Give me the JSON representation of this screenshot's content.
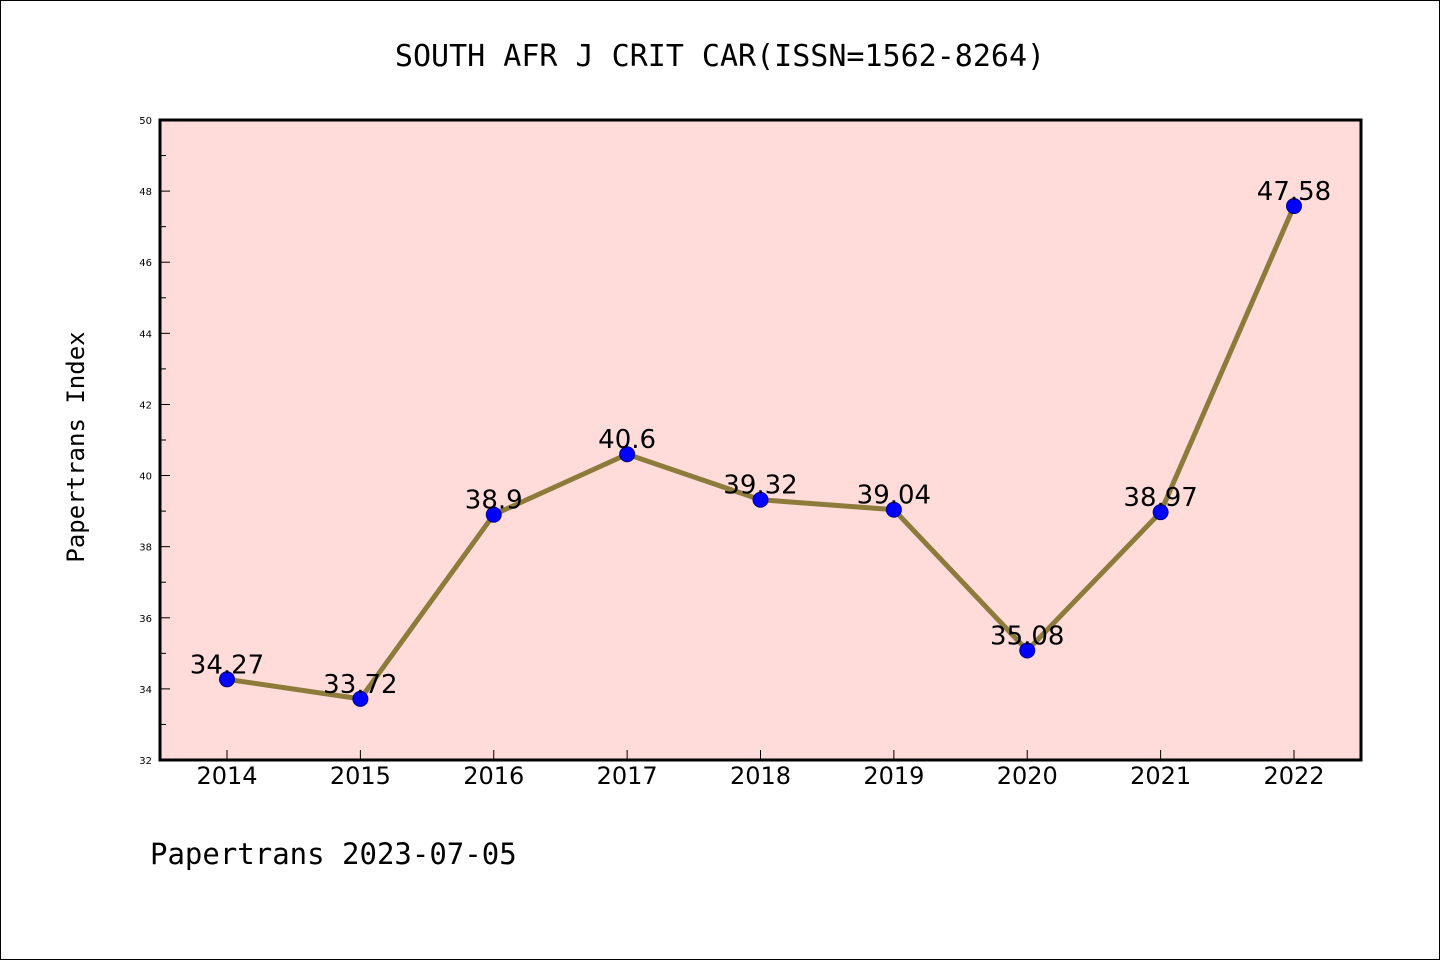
{
  "chart_data": {
    "type": "line",
    "title": "SOUTH AFR J CRIT CAR(ISSN=1562-8264)",
    "xlabel": "",
    "ylabel": "Papertrans Index",
    "categories": [
      "2014",
      "2015",
      "2016",
      "2017",
      "2018",
      "2019",
      "2020",
      "2021",
      "2022"
    ],
    "values": [
      34.27,
      33.72,
      38.9,
      40.6,
      39.32,
      39.04,
      35.08,
      38.97,
      47.58
    ],
    "data_labels": [
      "34.27",
      "33.72",
      "38.9",
      "40.6",
      "39.32",
      "39.04",
      "35.08",
      "38.97",
      "47.58"
    ],
    "ylim": [
      32,
      50
    ],
    "yticks": [
      "32",
      "34",
      "36",
      "38",
      "40",
      "42",
      "44",
      "46",
      "48",
      "50"
    ],
    "grid": false,
    "colors": {
      "plot_background": "#FFDCDA",
      "line": "#8C7B3A",
      "marker": "#0000FF"
    }
  },
  "footer": "Papertrans 2023-07-05"
}
